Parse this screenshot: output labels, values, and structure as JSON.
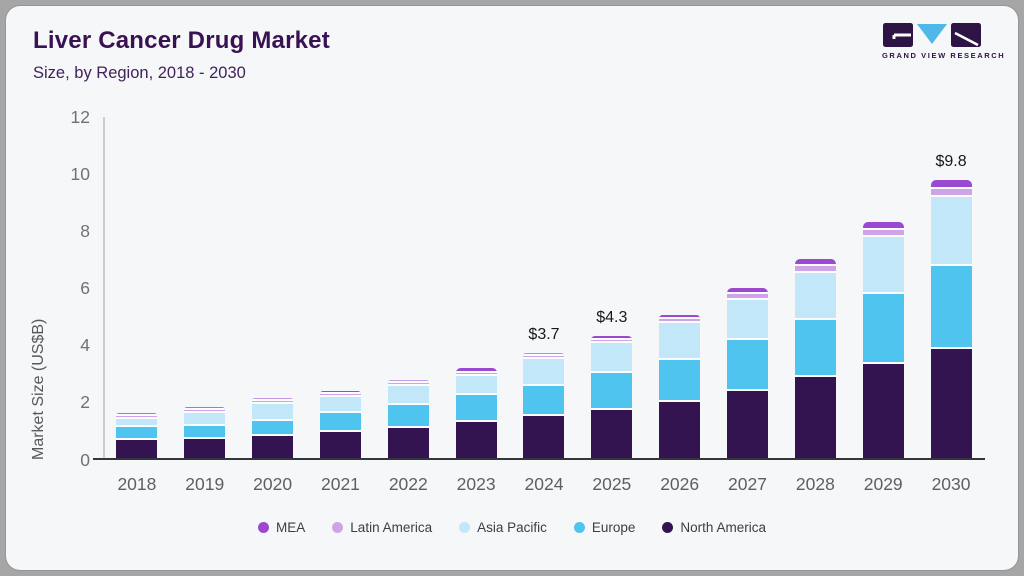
{
  "header": {
    "title": "Liver Cancer Drug Market",
    "subtitle": "Size, by Region, 2018 - 2030",
    "logo_text": "GRAND VIEW RESEARCH"
  },
  "chart_data": {
    "type": "bar",
    "stacked": true,
    "title": "Liver Cancer Drug Market",
    "subtitle": "Size, by Region, 2018 - 2030",
    "ylabel": "Market Size (US$B)",
    "ylim": [
      0,
      12
    ],
    "yticks": [
      0,
      2,
      4,
      6,
      8,
      10,
      12
    ],
    "grid": false,
    "legend_position": "bottom",
    "categories": [
      "2018",
      "2019",
      "2020",
      "2021",
      "2022",
      "2023",
      "2024",
      "2025",
      "2026",
      "2027",
      "2028",
      "2029",
      "2030"
    ],
    "series": [
      {
        "name": "North America",
        "color": "#341450",
        "values": [
          0.62,
          0.67,
          0.79,
          0.93,
          1.05,
          1.25,
          1.48,
          1.68,
          1.98,
          2.37,
          2.85,
          3.3,
          3.85
        ]
      },
      {
        "name": "Europe",
        "color": "#4fc4ef",
        "values": [
          0.47,
          0.46,
          0.52,
          0.65,
          0.82,
          0.96,
          1.06,
          1.31,
          1.48,
          1.79,
          2.0,
          2.48,
          2.92
        ]
      },
      {
        "name": "Asia Pacific",
        "color": "#c1e7f8",
        "values": [
          0.28,
          0.45,
          0.58,
          0.57,
          0.65,
          0.69,
          0.93,
          1.05,
          1.29,
          1.41,
          1.65,
          2.0,
          2.4
        ]
      },
      {
        "name": "Latin America",
        "color": "#cfa3e8",
        "values": [
          0.07,
          0.07,
          0.07,
          0.1,
          0.1,
          0.08,
          0.09,
          0.11,
          0.16,
          0.2,
          0.25,
          0.26,
          0.3
        ]
      },
      {
        "name": "MEA",
        "color": "#9c49d2",
        "values": [
          0.06,
          0.06,
          0.06,
          0.07,
          0.1,
          0.17,
          0.11,
          0.15,
          0.14,
          0.2,
          0.25,
          0.26,
          0.33
        ]
      }
    ],
    "totals": [
      1.5,
      1.71,
      2.02,
      2.32,
      2.72,
      3.15,
      3.67,
      4.3,
      5.05,
      5.97,
      7.0,
      8.3,
      9.8
    ],
    "value_labels": {
      "2024": "$3.7",
      "2025": "$4.3",
      "2030": "$9.8"
    },
    "legend_order": [
      "MEA",
      "Latin America",
      "Asia Pacific",
      "Europe",
      "North America"
    ]
  },
  "colors": {
    "card_background": "#f5f7f9",
    "outer_background": "#a6a6a6",
    "title_text": "#3a1254",
    "axis_line": "#c9ced2",
    "baseline": "#33363a",
    "tick_text": "#6e7276",
    "logo_purple": "#2e1345",
    "logo_blue": "#4fb8e8"
  }
}
